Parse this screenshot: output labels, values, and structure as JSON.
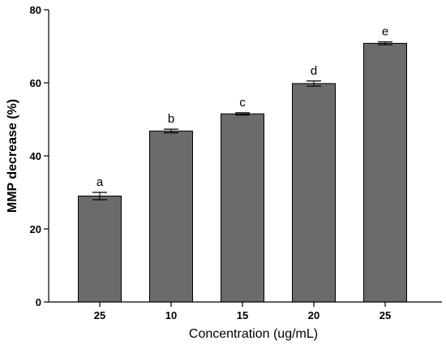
{
  "chart_data": {
    "type": "bar",
    "categories": [
      "25",
      "10",
      "15",
      "20",
      "25"
    ],
    "values": [
      29.0,
      46.8,
      51.5,
      59.8,
      70.8
    ],
    "errors": [
      1.0,
      0.5,
      0.3,
      0.7,
      0.4
    ],
    "letters": [
      "a",
      "b",
      "c",
      "d",
      "e"
    ],
    "xlabel": "Concentration (ug/mL)",
    "ylabel": "MMP decrease (%)",
    "ylim": [
      0,
      80
    ],
    "yticks": [
      "0",
      "20",
      "40",
      "60",
      "80"
    ],
    "bar_color": "#6b6b6b",
    "grid": false
  }
}
